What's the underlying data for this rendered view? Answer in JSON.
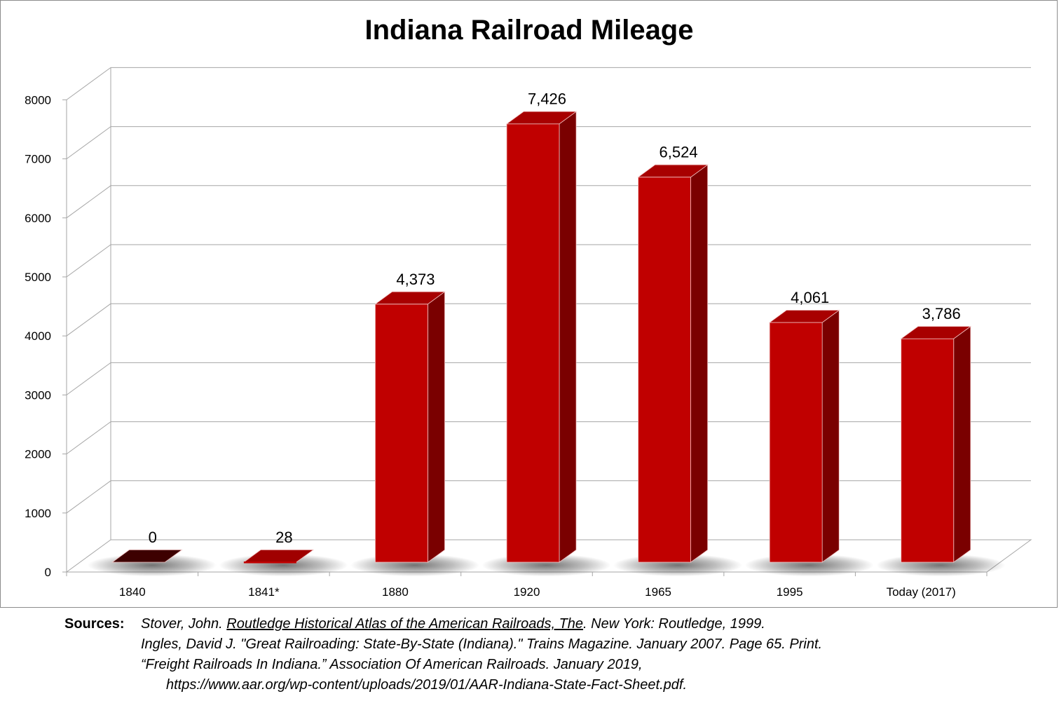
{
  "chart_data": {
    "type": "bar",
    "title": "Indiana Railroad Mileage",
    "categories": [
      "1840",
      "1841*",
      "1880",
      "1920",
      "1965",
      "1995",
      "Today  (2017)"
    ],
    "values": [
      0,
      28,
      4373,
      7426,
      6524,
      4061,
      3786
    ],
    "data_labels": [
      "0",
      "28",
      "4,373",
      "7,426",
      "6,524",
      "4,061",
      "3,786"
    ],
    "ylim": [
      0,
      8000
    ],
    "yticks": [
      "0",
      "1000",
      "2000",
      "3000",
      "4000",
      "5000",
      "6000",
      "7000",
      "8000"
    ],
    "grid": true,
    "style": "3d-column",
    "colors": {
      "bar_front": "#c00000",
      "bar_side": "#7a0000",
      "bar_top": "#a80000",
      "zero_bar": "#3d0000",
      "grid": "#a6a6a6"
    }
  },
  "sources": {
    "label": "Sources:",
    "line1_pre": "Stover, John. ",
    "line1_title": "Routledge Historical Atlas of the American Railroads, The",
    "line1_post": ". New York: Routledge, 1999.",
    "line2": "Ingles, David J. \"Great Railroading: State-By-State (Indiana).\" Trains Magazine. January 2007. Page 65. Print.",
    "line3": "“Freight Railroads In Indiana.” Association Of American Railroads. January 2019,",
    "line4": "https://www.aar.org/wp-content/uploads/2019/01/AAR-Indiana-State-Fact-Sheet.pdf."
  }
}
